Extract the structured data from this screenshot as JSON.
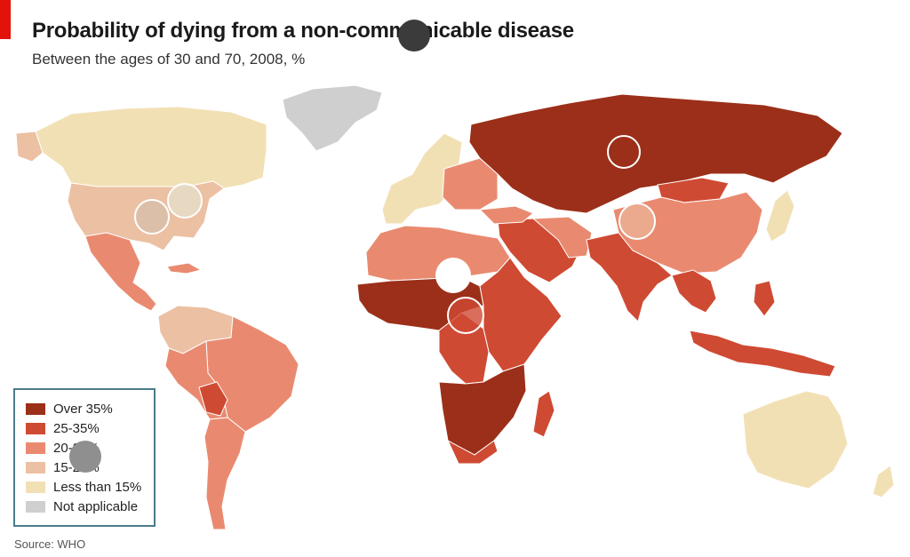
{
  "title": "Probability of dying from a non-communicable disease",
  "subtitle": "Between the ages of 30 and 70, 2008, %",
  "source": "Source: WHO",
  "colors": {
    "over35": "#9c2f19",
    "c25_35": "#cf4a33",
    "c20_25": "#e98a70",
    "c15_20": "#ecc0a2",
    "less15": "#f2e0b5",
    "na": "#cfcfcf",
    "accent": "#e3120b"
  },
  "legend": [
    {
      "label": "Over 35%",
      "color": "#9c2f19"
    },
    {
      "label": "25-35%",
      "color": "#cf4a33"
    },
    {
      "label": "20-25%",
      "color": "#e98a70"
    },
    {
      "label": "15-20%",
      "color": "#ecc0a2"
    },
    {
      "label": "Less than 15%",
      "color": "#f2e0b5"
    },
    {
      "label": "Not applicable",
      "color": "#cfcfcf"
    }
  ]
}
